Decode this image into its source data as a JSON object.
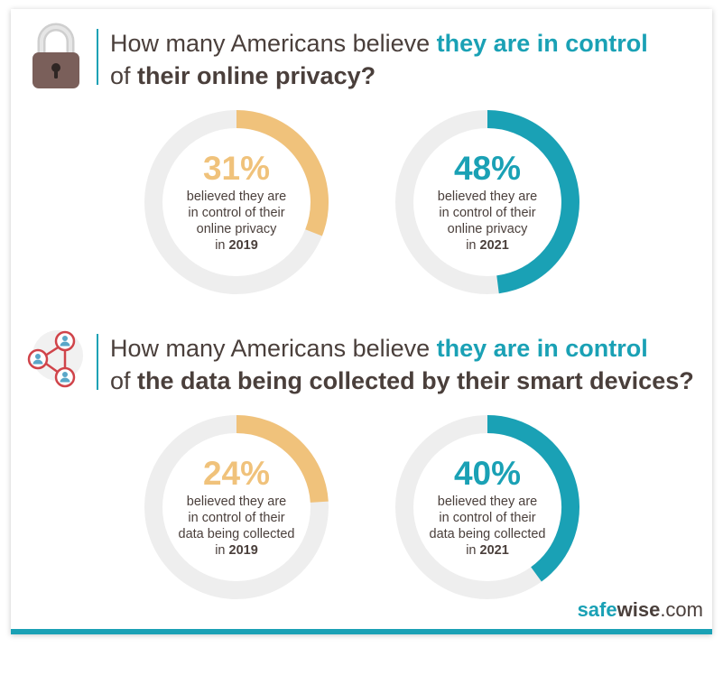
{
  "sections": [
    {
      "headline": {
        "line1_prefix": "How many Americans believe ",
        "line1_highlight": "they are in control",
        "line2_prefix": "of ",
        "line2_bold": "their online privacy?"
      },
      "icon": "padlock-icon"
    },
    {
      "headline": {
        "line1_prefix": "How many Americans believe ",
        "line1_highlight": "they are in control",
        "line2_prefix": "of ",
        "line2_bold": "the data being collected by their smart devices?"
      },
      "icon": "network-users-icon"
    }
  ],
  "chart_data": [
    {
      "type": "pie",
      "title": "How many Americans believe they are in control of their online privacy?",
      "slices": [
        {
          "label": "2019",
          "value": 31,
          "value_label": "31%",
          "desc_lines": [
            "believed they are",
            "in control of their",
            "online privacy"
          ],
          "year_prefix": "in ",
          "year": "2019",
          "color": "#f0c27b"
        },
        {
          "label": "2021",
          "value": 48,
          "value_label": "48%",
          "desc_lines": [
            "believed they are",
            "in control of their",
            "online privacy"
          ],
          "year_prefix": "in ",
          "year": "2021",
          "color": "#1aa1b5"
        }
      ]
    },
    {
      "type": "pie",
      "title": "How many Americans believe they are in control of the data being collected by their smart devices?",
      "slices": [
        {
          "label": "2019",
          "value": 24,
          "value_label": "24%",
          "desc_lines": [
            "believed they are",
            "in control of their",
            "data being collected"
          ],
          "year_prefix": "in ",
          "year": "2019",
          "color": "#f0c27b"
        },
        {
          "label": "2021",
          "value": 40,
          "value_label": "40%",
          "desc_lines": [
            "believed they are",
            "in control of their",
            "data being collected"
          ],
          "year_prefix": "in ",
          "year": "2021",
          "color": "#1aa1b5"
        }
      ]
    }
  ],
  "colors": {
    "track": "#eeeeee",
    "accent": "#1aa1b5",
    "gold": "#f0c27b",
    "text": "#4a3f3b",
    "icon_red": "#d0444a",
    "lock_brown": "#7a5f5a"
  },
  "logo": {
    "safe": "safe",
    "wise": "wise",
    "dot_com": ".com"
  }
}
